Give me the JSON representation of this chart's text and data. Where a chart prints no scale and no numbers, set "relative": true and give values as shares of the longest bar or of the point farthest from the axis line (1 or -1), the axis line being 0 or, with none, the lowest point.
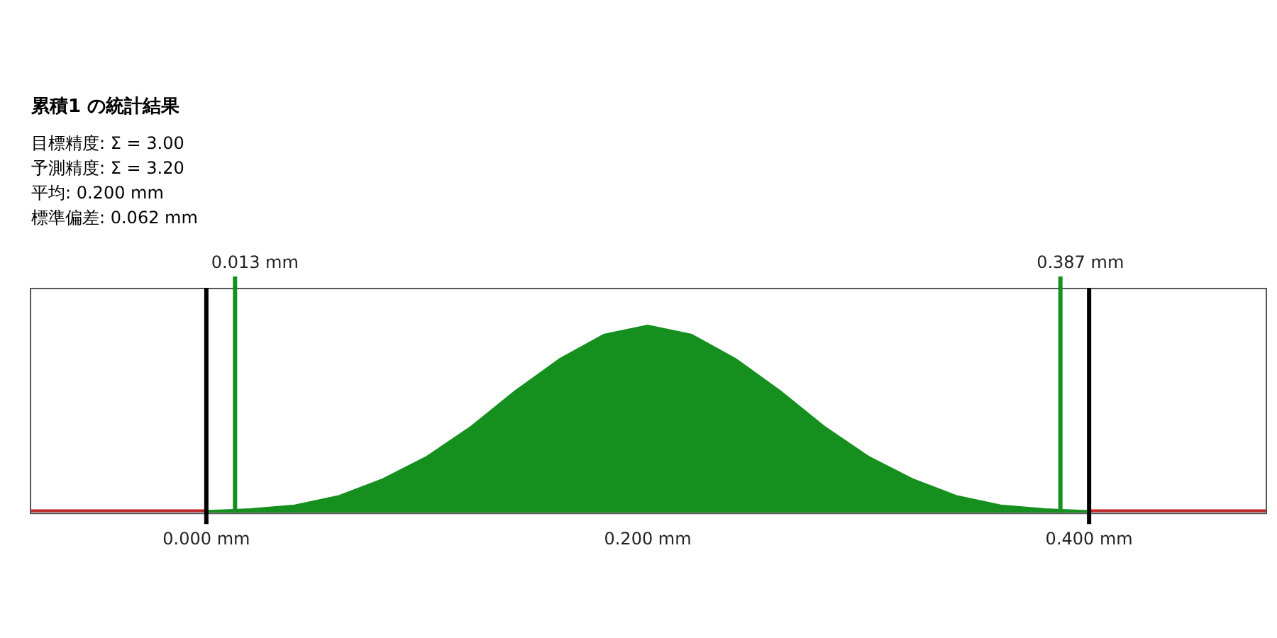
{
  "chart_data": {
    "type": "area",
    "title": "累積1 の統計結果",
    "annotations": [
      "目標精度: Σ = 3.00",
      "予測精度: Σ = 3.20",
      "平均: 0.200 mm",
      "標準偏差: 0.062 mm"
    ],
    "relative": true,
    "xlim": [
      -0.08,
      0.48
    ],
    "xticks": [
      {
        "value": 0,
        "label": "0.000 mm"
      },
      {
        "value": 0.2,
        "label": "0.200 mm"
      },
      {
        "value": 0.4,
        "label": "0.400 mm"
      }
    ],
    "grid": false,
    "legend": false,
    "series": [
      {
        "color": "#15901f",
        "x": [
          0,
          0.02,
          0.04,
          0.06,
          0.08,
          0.1,
          0.12,
          0.14,
          0.16,
          0.18,
          0.2,
          0.22,
          0.24,
          0.26,
          0.28,
          0.3,
          0.32,
          0.34,
          0.36,
          0.38,
          0.4
        ],
        "values": [
          0.01,
          0.02,
          0.04,
          0.09,
          0.18,
          0.3,
          0.46,
          0.65,
          0.82,
          0.95,
          1,
          0.95,
          0.82,
          0.65,
          0.46,
          0.3,
          0.18,
          0.09,
          0.04,
          0.02,
          0.01
        ]
      },
      {
        "type": "line",
        "color": "#c0282a",
        "x": [
          -0.08,
          0
        ],
        "values": [
          0.01,
          0.01
        ]
      },
      {
        "type": "line",
        "color": "#c0282a",
        "x": [
          0.4,
          0.48
        ],
        "values": [
          0.01,
          0.01
        ]
      }
    ],
    "ref_lines": [
      {
        "axis": "x",
        "value": 0,
        "color": "#000000"
      },
      {
        "axis": "x",
        "value": 0.4,
        "color": "#000000"
      },
      {
        "axis": "x",
        "value": 0.013,
        "label": "0.013 mm",
        "color": "#15901f"
      },
      {
        "axis": "x",
        "value": 0.387,
        "label": "0.387 mm",
        "color": "#15901f"
      }
    ]
  }
}
